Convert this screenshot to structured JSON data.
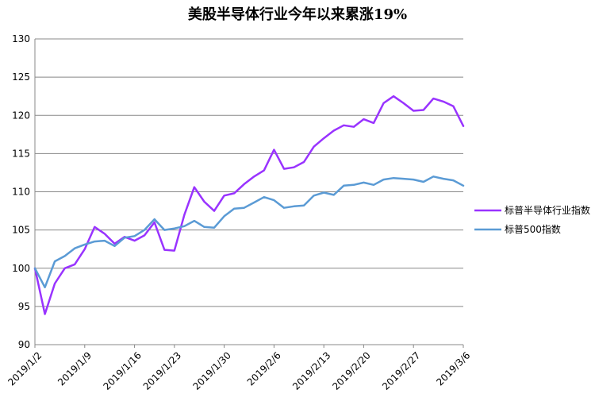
{
  "chart_data": {
    "type": "line",
    "title": "美股半导体行业今年以来累涨19%",
    "xlabel": "",
    "ylabel": "",
    "ylim": [
      90,
      130
    ],
    "yticks": [
      90,
      95,
      100,
      105,
      110,
      115,
      120,
      125,
      130
    ],
    "x": [
      "2019/1/2",
      "2019/1/3",
      "2019/1/4",
      "2019/1/7",
      "2019/1/8",
      "2019/1/9",
      "2019/1/10",
      "2019/1/11",
      "2019/1/14",
      "2019/1/15",
      "2019/1/16",
      "2019/1/17",
      "2019/1/18",
      "2019/1/22",
      "2019/1/23",
      "2019/1/24",
      "2019/1/25",
      "2019/1/28",
      "2019/1/29",
      "2019/1/30",
      "2019/1/31",
      "2019/2/1",
      "2019/2/4",
      "2019/2/5",
      "2019/2/6",
      "2019/2/7",
      "2019/2/8",
      "2019/2/11",
      "2019/2/12",
      "2019/2/13",
      "2019/2/14",
      "2019/2/15",
      "2019/2/19",
      "2019/2/20",
      "2019/2/21",
      "2019/2/22",
      "2019/2/25",
      "2019/2/26",
      "2019/2/27",
      "2019/2/28",
      "2019/3/1",
      "2019/3/4",
      "2019/3/5",
      "2019/3/6"
    ],
    "xticks": [
      "2019/1/2",
      "2019/1/9",
      "2019/1/16",
      "2019/1/23",
      "2019/1/30",
      "2019/2/6",
      "2019/2/13",
      "2019/2/20",
      "2019/2/27",
      "2019/3/6"
    ],
    "series": [
      {
        "name": "标普半导体行业指数",
        "color": "#9933ff",
        "values": [
          100.0,
          94.0,
          98.0,
          100.0,
          100.5,
          102.5,
          105.4,
          104.5,
          103.2,
          104.1,
          103.6,
          104.3,
          106.0,
          102.4,
          102.3,
          107.0,
          110.6,
          108.7,
          107.5,
          109.5,
          109.8,
          111.0,
          112.0,
          112.8,
          115.5,
          113.0,
          113.2,
          113.9,
          115.9,
          117.0,
          118.0,
          118.7,
          118.5,
          119.5,
          119.0,
          121.6,
          122.5,
          121.6,
          120.6,
          120.7,
          122.2,
          121.8,
          121.2,
          118.6
        ]
      },
      {
        "name": "标普500指数",
        "color": "#5b9bd5",
        "values": [
          100.0,
          97.5,
          100.9,
          101.6,
          102.6,
          103.1,
          103.5,
          103.6,
          102.9,
          104.0,
          104.2,
          105.0,
          106.4,
          105.0,
          105.2,
          105.5,
          106.2,
          105.4,
          105.3,
          106.8,
          107.8,
          107.9,
          108.6,
          109.3,
          108.9,
          107.9,
          108.1,
          108.2,
          109.5,
          109.9,
          109.6,
          110.8,
          110.9,
          111.2,
          110.9,
          111.6,
          111.8,
          111.7,
          111.6,
          111.3,
          112.0,
          111.7,
          111.5,
          110.8
        ]
      }
    ],
    "legend_position": "right",
    "grid": true
  }
}
